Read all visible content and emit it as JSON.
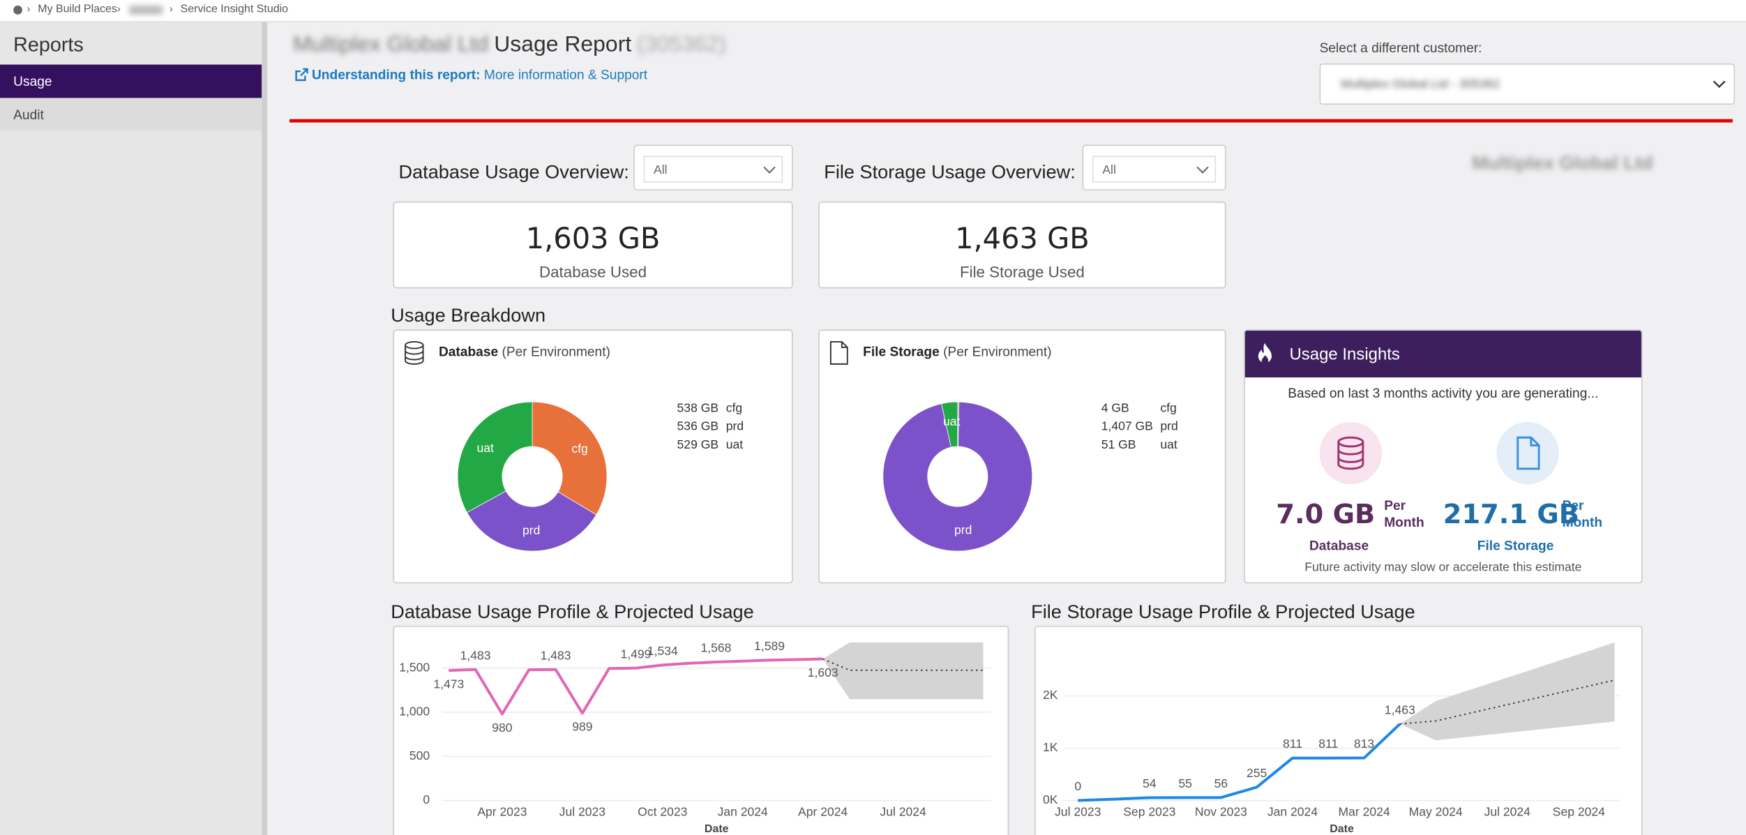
{
  "breadcrumb": [
    "My Build Places",
    "Service Insight Studio"
  ],
  "sidebar": {
    "title": "Reports",
    "items": [
      "Usage",
      "Audit"
    ]
  },
  "header": {
    "customer": "Multiplex Global Ltd",
    "title": "Usage Report",
    "code": "(305362)",
    "link_label": "Understanding this report:",
    "link_text": "More information & Support",
    "select_label": "Select a different customer:",
    "select_value": "Multiplex Global Ltd - 305362"
  },
  "overview": {
    "watermark": "Multiplex Global Ltd",
    "database": {
      "label": "Database Usage Overview:",
      "filter": "All",
      "value": "1,603 GB",
      "caption": "Database Used"
    },
    "file_storage": {
      "label": "File Storage Usage Overview:",
      "filter": "All",
      "value": "1,463 GB",
      "caption": "File Storage Used"
    }
  },
  "breakdown": {
    "title": "Usage Breakdown",
    "database": {
      "title": "Database",
      "subtitle": "(Per Environment)",
      "chart": {
        "type": "pie",
        "categories": [
          "cfg",
          "prd",
          "uat"
        ],
        "values": [
          538,
          536,
          529
        ],
        "value_labels": [
          "538 GB",
          "536 GB",
          "529 GB"
        ],
        "colors": [
          "#e8703a",
          "#7b52c9",
          "#22a845"
        ]
      }
    },
    "file_storage": {
      "title": "File Storage",
      "subtitle": "(Per Environment)",
      "chart": {
        "type": "pie",
        "categories": [
          "cfg",
          "prd",
          "uat"
        ],
        "values": [
          4,
          1407,
          51
        ],
        "value_labels": [
          "4 GB",
          "1,407 GB",
          "51 GB"
        ],
        "colors": [
          "#e8703a",
          "#7b52c9",
          "#22a845"
        ]
      }
    }
  },
  "insights": {
    "title": "Usage Insights",
    "intro": "Based on last 3 months activity you are generating...",
    "database": {
      "value": "7.0 GB",
      "period": "Per Month",
      "label": "Database"
    },
    "file_storage": {
      "value": "217.1 GB",
      "period": "Per Month",
      "label": "File Storage"
    },
    "footer": "Future activity may slow or accelerate this estimate"
  },
  "profiles": [
    {
      "title": "Database Usage Profile & Projected Usage",
      "chart": {
        "type": "line",
        "color": "#e066b8",
        "grid": true,
        "xlabel": "Date",
        "x": [
          "Feb 2023",
          "Mar 2023",
          "Apr 2023",
          "May 2023",
          "Jun 2023",
          "Jul 2023",
          "Aug 2023",
          "Sep 2023",
          "Oct 2023",
          "Nov 2023",
          "Dec 2023",
          "Jan 2024",
          "Feb 2024",
          "Mar 2024",
          "Apr 2024"
        ],
        "values": [
          1473,
          1483,
          980,
          1480,
          1483,
          989,
          1495,
          1499,
          1534,
          1555,
          1568,
          1578,
          1589,
          1596,
          1603
        ],
        "value_labels": [
          "1,473",
          "1,483",
          "980",
          null,
          "1,483",
          "989",
          null,
          "1,499",
          "1,534",
          null,
          "1,568",
          null,
          "1,589",
          null,
          "1,603"
        ],
        "projection": {
          "x": [
            "Apr 2024",
            "May 2024",
            "Oct 2024"
          ],
          "values": [
            1603,
            1475,
            1475
          ],
          "lower": [
            1603,
            1147,
            1147
          ],
          "upper": [
            1603,
            1790,
            1790
          ]
        },
        "xlim": [
          "Feb 2023",
          "Oct 2024"
        ],
        "xticks": [
          "Apr 2023",
          "Jul 2023",
          "Oct 2023",
          "Jan 2024",
          "Apr 2024",
          "Jul 2024"
        ],
        "ylim": [
          0,
          1967
        ],
        "yticks": [
          0,
          500,
          {
            "value": 1000,
            "label": "1,000"
          },
          {
            "value": 1500,
            "label": "1,500"
          }
        ]
      }
    },
    {
      "title": "File Storage Usage Profile & Projected Usage",
      "chart": {
        "type": "line",
        "color": "#1e88e5",
        "grid": true,
        "xlabel": "Date",
        "x": [
          "Jul 2023",
          "Aug 2023",
          "Sep 2023",
          "Oct 2023",
          "Nov 2023",
          "Dec 2023",
          "Jan 2024",
          "Feb 2024",
          "Mar 2024",
          "Apr 2024"
        ],
        "values": [
          0,
          25,
          54,
          55,
          56,
          255,
          811,
          811,
          813,
          1463
        ],
        "value_labels": [
          "0",
          null,
          "54",
          "55",
          "56",
          "255",
          "811",
          "811",
          "813",
          "1,463"
        ],
        "projection": {
          "x": [
            "Apr 2024",
            "May 2024",
            "Oct 2024"
          ],
          "values": [
            1463,
            1520,
            2300
          ],
          "lower": [
            1463,
            1150,
            1510
          ],
          "upper": [
            1463,
            1900,
            3020
          ]
        },
        "xlim": [
          "Jul 2023",
          "Oct 2024"
        ],
        "xticks": [
          "Jul 2023",
          "Sep 2023",
          "Nov 2023",
          "Jan 2024",
          "Mar 2024",
          "May 2024",
          "Jul 2024",
          "Sep 2024"
        ],
        "ylim": [
          0,
          3320
        ],
        "yticks": [
          {
            "value": 0,
            "label": "0K"
          },
          {
            "value": 1000,
            "label": "1K"
          },
          {
            "value": 2000,
            "label": "2K"
          }
        ]
      }
    }
  ]
}
